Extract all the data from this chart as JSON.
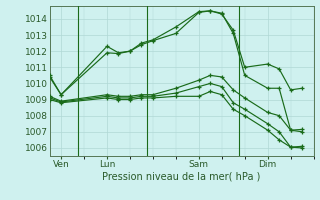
{
  "bg_color": "#cff1ef",
  "grid_color": "#b0d8d5",
  "line_color": "#1a6b1a",
  "title": "Pression niveau de la mer( hPa )",
  "ylim": [
    1005.5,
    1014.8
  ],
  "yticks": [
    1006,
    1007,
    1008,
    1009,
    1010,
    1011,
    1012,
    1013,
    1014
  ],
  "day_labels": [
    "Ven",
    "Lun",
    "Sam",
    "Dim"
  ],
  "day_positions": [
    1,
    5,
    13,
    19
  ],
  "vlines": [
    2.5,
    8.5,
    16.5
  ],
  "xlim": [
    0,
    23
  ],
  "series": [
    {
      "x": [
        0,
        1,
        5,
        6,
        7,
        8,
        9,
        11,
        13,
        14,
        15,
        16,
        17,
        19,
        20,
        21,
        22
      ],
      "y": [
        1010.5,
        1009.3,
        1012.3,
        1011.9,
        1012.0,
        1012.5,
        1012.7,
        1013.5,
        1014.45,
        1014.5,
        1014.3,
        1013.3,
        1011.0,
        1011.2,
        1010.9,
        1009.6,
        1009.7
      ]
    },
    {
      "x": [
        0,
        1,
        5,
        6,
        7,
        8,
        9,
        11,
        13,
        14,
        15,
        16,
        17,
        19,
        20,
        21,
        22
      ],
      "y": [
        1010.4,
        1009.3,
        1011.9,
        1011.85,
        1012.0,
        1012.4,
        1012.65,
        1013.1,
        1014.4,
        1014.5,
        1014.35,
        1013.1,
        1010.5,
        1009.7,
        1009.7,
        1007.1,
        1007.15
      ]
    },
    {
      "x": [
        0,
        1,
        5,
        6,
        7,
        8,
        9,
        11,
        13,
        14,
        15,
        16,
        17,
        19,
        20,
        21,
        22
      ],
      "y": [
        1009.2,
        1008.9,
        1009.3,
        1009.2,
        1009.2,
        1009.3,
        1009.3,
        1009.7,
        1010.2,
        1010.5,
        1010.4,
        1009.6,
        1009.1,
        1008.2,
        1008.0,
        1007.1,
        1007.0
      ]
    },
    {
      "x": [
        0,
        1,
        5,
        6,
        7,
        8,
        9,
        11,
        13,
        14,
        15,
        16,
        17,
        19,
        20,
        21,
        22
      ],
      "y": [
        1009.1,
        1008.85,
        1009.2,
        1009.1,
        1009.1,
        1009.2,
        1009.2,
        1009.4,
        1009.8,
        1010.0,
        1009.8,
        1008.8,
        1008.4,
        1007.5,
        1007.0,
        1006.05,
        1006.1
      ]
    },
    {
      "x": [
        0,
        1,
        5,
        6,
        7,
        8,
        9,
        11,
        13,
        14,
        15,
        16,
        17,
        19,
        20,
        21,
        22
      ],
      "y": [
        1009.0,
        1008.8,
        1009.1,
        1009.0,
        1009.0,
        1009.1,
        1009.1,
        1009.2,
        1009.2,
        1009.5,
        1009.3,
        1008.4,
        1008.0,
        1007.1,
        1006.5,
        1006.05,
        1006.0
      ]
    }
  ]
}
